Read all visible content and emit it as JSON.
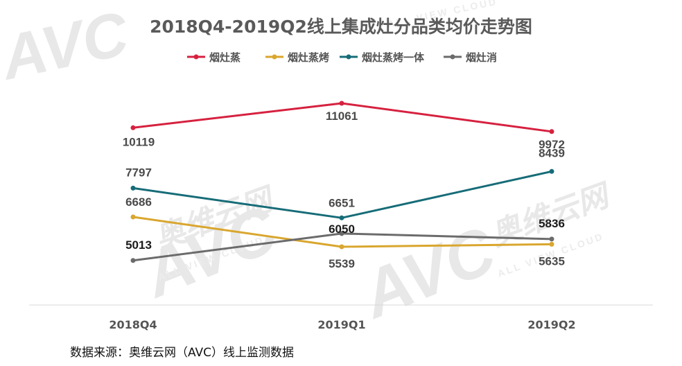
{
  "source_text": "数据来源：奥维云网（AVC）线上监测数据",
  "watermark": {
    "brand": "AVC",
    "cn": "奥维云网",
    "en": "ALL VIEW CLOUD"
  },
  "chart_data": {
    "type": "line",
    "title": "2018Q4-2019Q2线上集成灶分品类均价走势图",
    "categories": [
      "2018Q4",
      "2019Q1",
      "2019Q2"
    ],
    "series": [
      {
        "name": "烟灶蒸",
        "color": "#d6213f",
        "values": [
          10119,
          11061,
          9972
        ]
      },
      {
        "name": "烟灶蒸烤",
        "color": "#d9a62e",
        "values": [
          6686,
          5539,
          5635
        ]
      },
      {
        "name": "烟灶蒸烤一体",
        "color": "#166c78",
        "values": [
          7797,
          6651,
          8439
        ]
      },
      {
        "name": "烟灶消",
        "color": "#6b6b6b",
        "values": [
          5013,
          6050,
          5836
        ]
      }
    ],
    "ylim": [
      3300,
      12500
    ],
    "grid": false,
    "legend_position": "top-center"
  }
}
